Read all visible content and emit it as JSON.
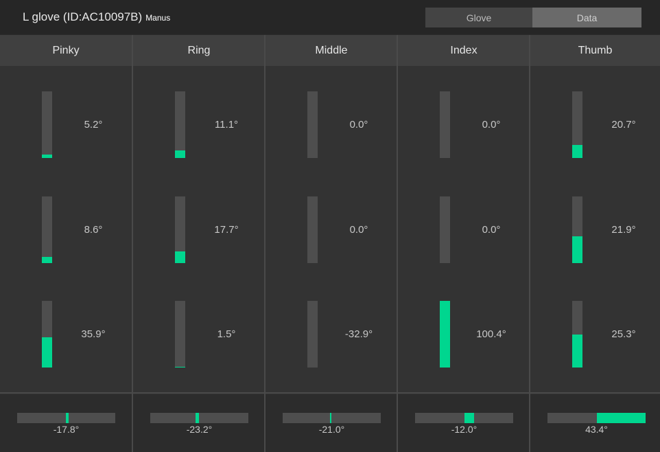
{
  "header": {
    "title": "L glove (ID:AC10097B)",
    "subtitle": "Manus",
    "tabs": [
      {
        "label": "Glove",
        "active": false
      },
      {
        "label": "Data",
        "active": true
      }
    ]
  },
  "colors": {
    "accent": "#00d68f",
    "bar_track": "#4e4e4e",
    "panel": "#333333",
    "column_header": "#404040"
  },
  "fingers": [
    {
      "name": "Pinky",
      "joints": [
        {
          "value": "5.2°",
          "fill_fraction": 0.05
        },
        {
          "value": "8.6°",
          "fill_fraction": 0.09
        },
        {
          "value": "35.9°",
          "fill_fraction": 0.45
        }
      ],
      "spread": {
        "value": "-17.8°",
        "marker_center": 0.51,
        "marker_width": 0.03
      }
    },
    {
      "name": "Ring",
      "joints": [
        {
          "value": "11.1°",
          "fill_fraction": 0.11
        },
        {
          "value": "17.7°",
          "fill_fraction": 0.18
        },
        {
          "value": "1.5°",
          "fill_fraction": 0.01
        }
      ],
      "spread": {
        "value": "-23.2°",
        "marker_center": 0.48,
        "marker_width": 0.04
      }
    },
    {
      "name": "Middle",
      "joints": [
        {
          "value": "0.0°",
          "fill_fraction": 0
        },
        {
          "value": "0.0°",
          "fill_fraction": 0
        },
        {
          "value": "-32.9°",
          "fill_fraction": 0
        }
      ],
      "spread": {
        "value": "-21.0°",
        "marker_center": 0.49,
        "marker_width": 0.015
      }
    },
    {
      "name": "Index",
      "joints": [
        {
          "value": "0.0°",
          "fill_fraction": 0
        },
        {
          "value": "0.0°",
          "fill_fraction": 0
        },
        {
          "value": "100.4°",
          "fill_fraction": 1.0
        }
      ],
      "spread": {
        "value": "-12.0°",
        "marker_center": 0.55,
        "marker_width": 0.1
      }
    },
    {
      "name": "Thumb",
      "joints": [
        {
          "value": "20.7°",
          "fill_fraction": 0.2
        },
        {
          "value": "21.9°",
          "fill_fraction": 0.4
        },
        {
          "value": "25.3°",
          "fill_fraction": 0.5
        }
      ],
      "spread": {
        "value": "43.4°",
        "marker_center": 0.75,
        "marker_width": 0.5
      }
    }
  ]
}
